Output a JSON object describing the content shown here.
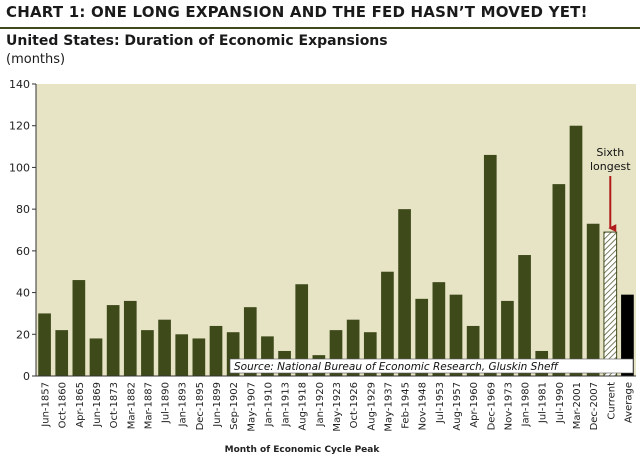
{
  "header": {
    "heading": "CHART 1: ONE LONG EXPANSION AND THE FED HASN’T MOVED YET!",
    "title": "United States: Duration of Economic Expansions",
    "units": "(months)"
  },
  "colors": {
    "bar": "#3f4a1b",
    "current_bar_fill": "#ffffff",
    "current_bar_hatch": "#3f4a1b",
    "average_bar": "#000000",
    "plot_background": "#e7e4c5",
    "arrow": "#b01c1c",
    "rule": "#3e4a1c"
  },
  "chart_data": {
    "type": "bar",
    "xlabel": "Month of Economic Cycle Peak",
    "ylabel": "",
    "ylim": [
      0,
      140
    ],
    "yticks": [
      0,
      20,
      40,
      60,
      80,
      100,
      120,
      140
    ],
    "grid": false,
    "categories": [
      "Jun-1857",
      "Oct-1860",
      "Apr-1865",
      "Jun-1869",
      "Oct-1873",
      "Mar-1882",
      "Mar-1887",
      "Jul-1890",
      "Jan-1893",
      "Dec-1895",
      "Jun-1899",
      "Sep-1902",
      "May-1907",
      "Jan-1910",
      "Jan-1913",
      "Aug-1918",
      "Jan-1920",
      "May-1923",
      "Oct-1926",
      "Aug-1929",
      "May-1937",
      "Feb-1945",
      "Nov-1948",
      "Jul-1953",
      "Aug-1957",
      "Apr-1960",
      "Dec-1969",
      "Nov-1973",
      "Jan-1980",
      "Jul-1981",
      "Jul-1990",
      "Mar-2001",
      "Dec-2007",
      "Current",
      "Average"
    ],
    "values": [
      30,
      22,
      46,
      18,
      34,
      36,
      22,
      27,
      20,
      18,
      24,
      21,
      33,
      19,
      12,
      44,
      10,
      22,
      27,
      21,
      50,
      80,
      37,
      45,
      39,
      24,
      106,
      36,
      58,
      12,
      92,
      120,
      73,
      69,
      39
    ],
    "special_bars": {
      "Current": "hatched",
      "Average": "solid-black"
    },
    "annotation": {
      "text_line1": "Sixth",
      "text_line2": "longest",
      "target": "Current"
    },
    "source_note": "Source: National Bureau of Economic Research, Gluskin Sheff"
  }
}
